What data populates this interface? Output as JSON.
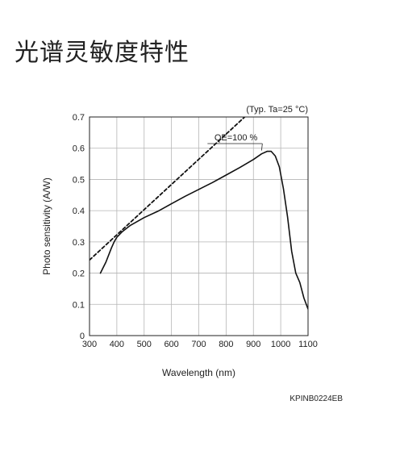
{
  "page": {
    "title": "光谱灵敏度特性"
  },
  "figure_code": "KPINB0224EB",
  "chart_data": {
    "type": "line",
    "condition": "(Typ. Ta=25 °C)",
    "xlabel": "Wavelength (nm)",
    "ylabel": "Photo sensitivity (A/W)",
    "xlim": [
      300,
      1100
    ],
    "ylim": [
      0,
      0.7
    ],
    "x_ticks": [
      300,
      400,
      500,
      600,
      700,
      800,
      900,
      1000,
      1100
    ],
    "y_ticks": [
      "0",
      "0.1",
      "0.2",
      "0.3",
      "0.4",
      "0.5",
      "0.6",
      "0.7"
    ],
    "grid": true,
    "series": [
      {
        "style": "solid",
        "x": [
          340,
          360,
          380,
          390,
          400,
          420,
          450,
          500,
          550,
          600,
          650,
          700,
          750,
          800,
          850,
          900,
          930,
          950,
          965,
          980,
          995,
          1010,
          1025,
          1040,
          1055,
          1070,
          1085,
          1100
        ],
        "y": [
          0.2,
          0.235,
          0.28,
          0.3,
          0.315,
          0.333,
          0.353,
          0.378,
          0.398,
          0.422,
          0.446,
          0.468,
          0.49,
          0.514,
          0.538,
          0.564,
          0.582,
          0.59,
          0.59,
          0.575,
          0.54,
          0.47,
          0.38,
          0.27,
          0.2,
          0.17,
          0.12,
          0.085
        ]
      },
      {
        "name": "QE=100 %",
        "style": "dashed",
        "x": [
          300,
          1100
        ],
        "y": [
          0.242,
          0.887
        ]
      }
    ],
    "annotations": [
      {
        "text": "QE=100 %",
        "x": 915,
        "y": 0.625,
        "points_to": [
          930,
          0.59
        ]
      }
    ]
  }
}
